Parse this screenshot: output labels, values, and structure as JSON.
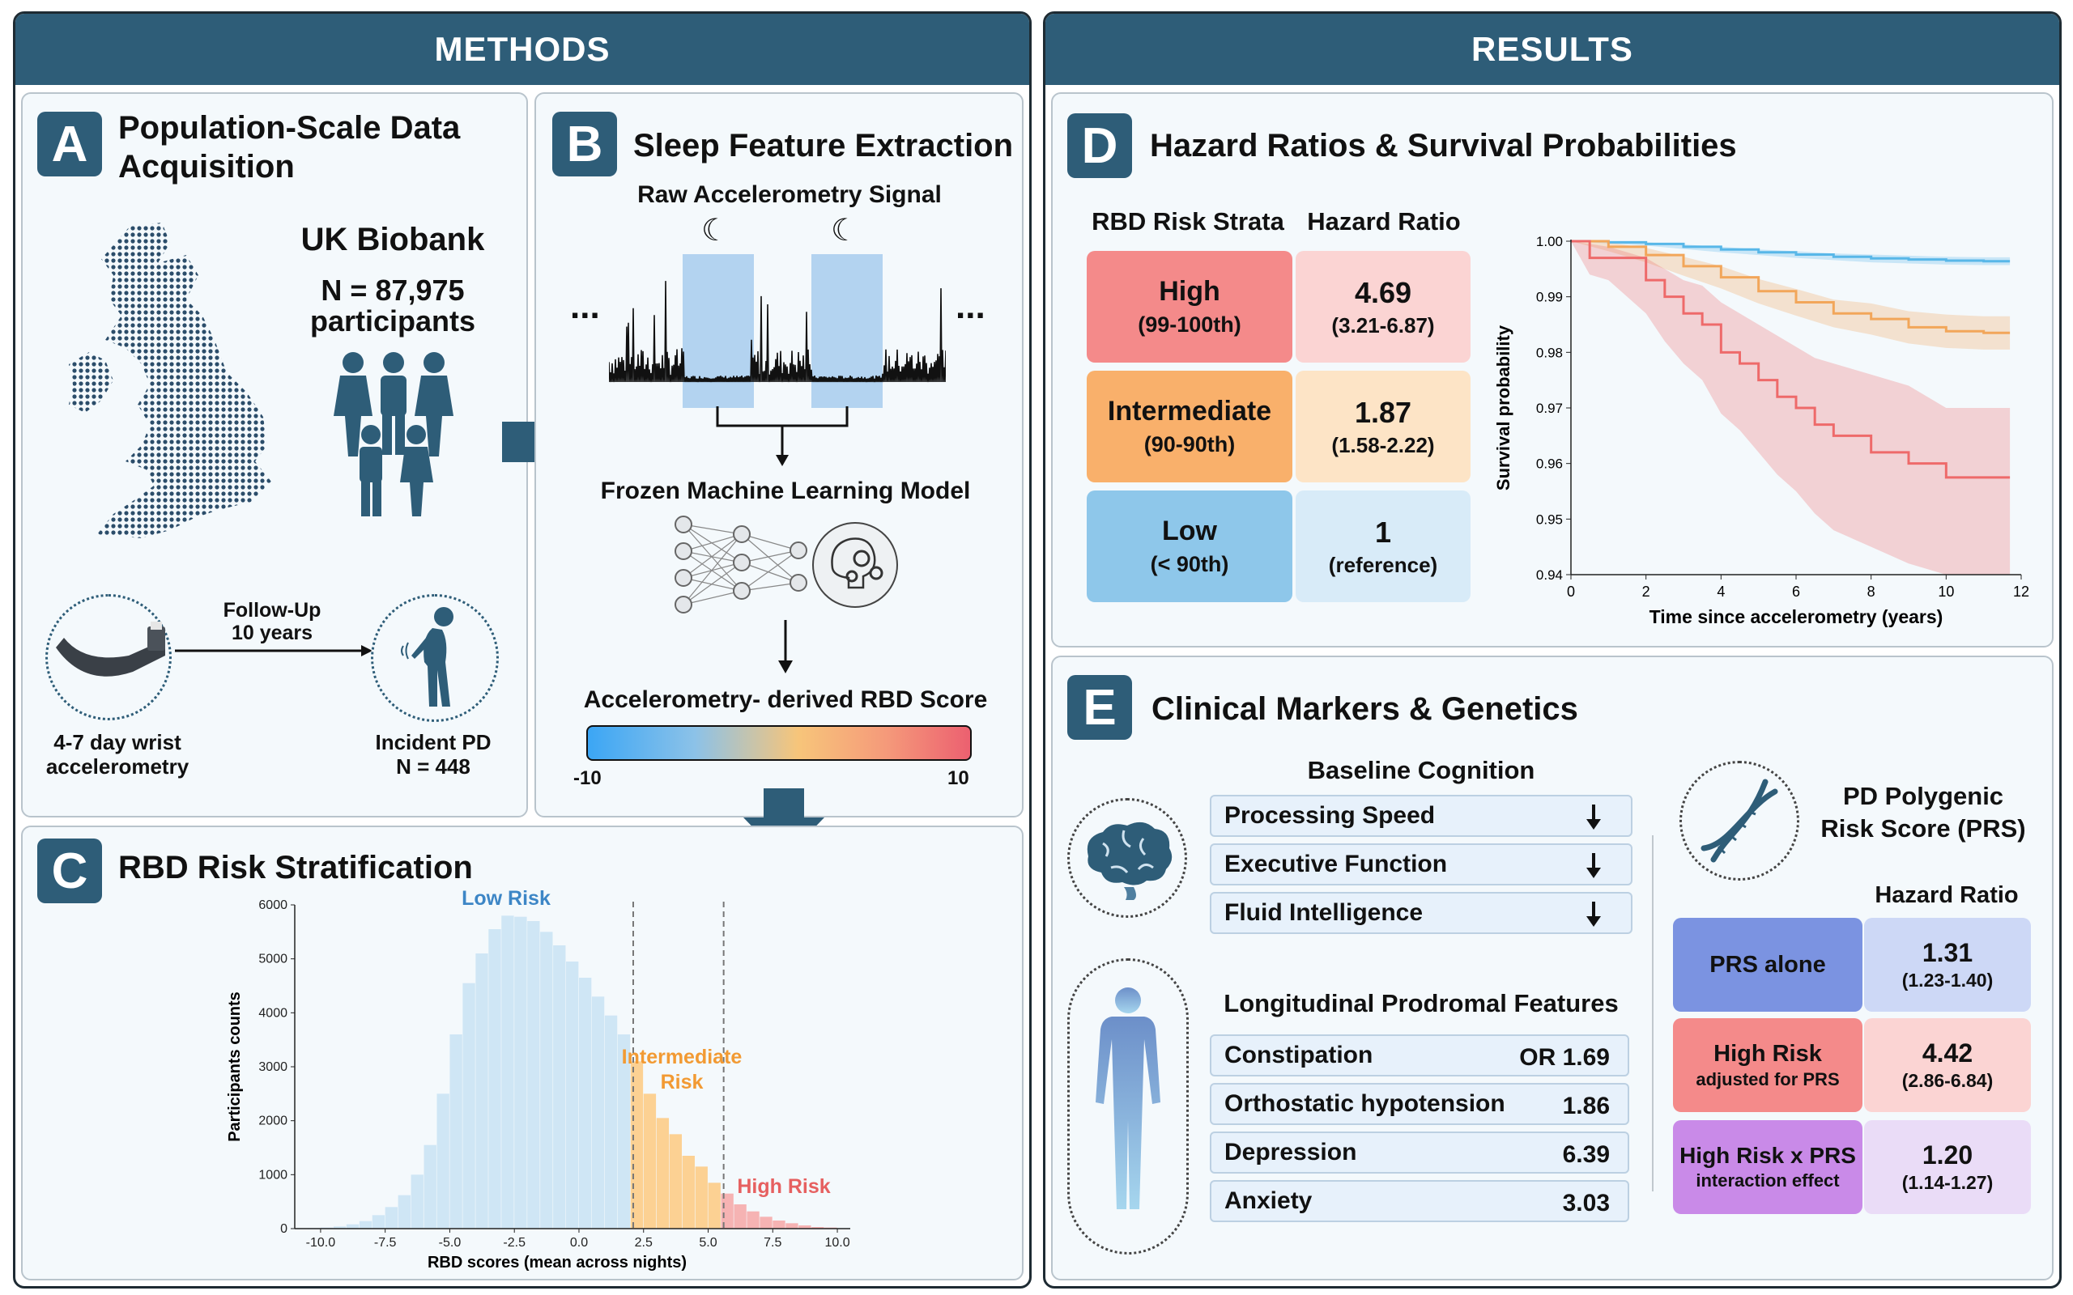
{
  "headers": {
    "methods": "METHODS",
    "results": "RESULTS"
  },
  "panel_a": {
    "letter": "A",
    "title_line1": "Population-Scale Data",
    "title_line2": "Acquisition",
    "biobank": "UK Biobank",
    "n_line": "N = 87,975",
    "n_label": "participants",
    "follow_up_line1": "Follow-Up",
    "follow_up_line2": "10 years",
    "device_line1": "4-7 day wrist",
    "device_line2": "accelerometry",
    "pd_line1": "Incident PD",
    "pd_line2": "N = 448"
  },
  "panel_b": {
    "letter": "B",
    "title": "Sleep Feature Extraction",
    "signal_label": "Raw Accelerometry Signal",
    "ellipsis": "...",
    "model_label": "Frozen Machine Learning Model",
    "score_label": "Accelerometry- derived RBD Score",
    "scale_min": "-10",
    "scale_max": "10"
  },
  "panel_c": {
    "letter": "C",
    "title": "RBD Risk Stratification",
    "label_low": "Low Risk",
    "label_mid_1": "Intermediate",
    "label_mid_2": "Risk",
    "label_high": "High Risk",
    "colors": {
      "low": "#cfe6f5",
      "mid": "#fcd193",
      "high": "#f6b3b3"
    }
  },
  "panel_d": {
    "letter": "D",
    "title": "Hazard Ratios & Survival Probabilities",
    "col_strata": "RBD Risk Strata",
    "col_hr": "Hazard Ratio",
    "rows": [
      {
        "name": "High",
        "range": "(99-100th)",
        "hr": "4.69",
        "ci": "(3.21-6.87)"
      },
      {
        "name": "Intermediate",
        "range": "(90-90th)",
        "hr": "1.87",
        "ci": "(1.58-2.22)"
      },
      {
        "name": "Low",
        "range": "(< 90th)",
        "hr": "1",
        "ci": "(reference)"
      }
    ]
  },
  "panel_e": {
    "letter": "E",
    "title": "Clinical Markers & Genetics",
    "cognition_title": "Baseline Cognition",
    "cognition": [
      "Processing Speed",
      "Executive Function",
      "Fluid Intelligence"
    ],
    "prodromal_title": "Longitudinal Prodromal Features",
    "prodromal": [
      {
        "name": "Constipation",
        "value": "OR 1.69"
      },
      {
        "name": "Orthostatic hypotension",
        "value": "1.86"
      },
      {
        "name": "Depression",
        "value": "6.39"
      },
      {
        "name": "Anxiety",
        "value": "3.03"
      }
    ],
    "prs_title_1": "PD Polygenic",
    "prs_title_2": "Risk Score (PRS)",
    "hr_header": "Hazard Ratio",
    "prs_rows": [
      {
        "label": "PRS alone",
        "sub": "",
        "hr": "1.31",
        "ci": "(1.23-1.40)"
      },
      {
        "label": "High Risk",
        "sub": "adjusted for PRS",
        "hr": "4.42",
        "ci": "(2.86-6.84)"
      },
      {
        "label": "High Risk x PRS",
        "sub": "interaction effect",
        "hr": "1.20",
        "ci": "(1.14-1.27)"
      }
    ]
  },
  "chart_data": [
    {
      "type": "bar",
      "title": "",
      "xlabel": "RBD scores (mean across nights)",
      "ylabel": "Participants counts",
      "xlim": [
        -11,
        10.5
      ],
      "ylim": [
        0,
        6000
      ],
      "xticks": [
        "-10.0",
        "-7.5",
        "-5.0",
        "-2.5",
        "0.0",
        "2.5",
        "5.0",
        "7.5",
        "10.0"
      ],
      "yticks": [
        "0",
        "1000",
        "2000",
        "3000",
        "4000",
        "5000",
        "6000"
      ],
      "thresholds": [
        2.1,
        5.6
      ],
      "bin_width": 0.5,
      "bin_starts": [
        -10.5,
        -10,
        -9.5,
        -9,
        -8.5,
        -8,
        -7.5,
        -7,
        -6.5,
        -6,
        -5.5,
        -5,
        -4.5,
        -4,
        -3.5,
        -3,
        -2.5,
        -2,
        -1.5,
        -1,
        -0.5,
        0,
        0.5,
        1,
        1.5,
        2,
        2.5,
        3,
        3.5,
        4,
        4.5,
        5,
        5.5,
        6,
        6.5,
        7,
        7.5,
        8,
        8.5,
        9,
        9.5
      ],
      "values": [
        10,
        20,
        40,
        80,
        140,
        250,
        400,
        620,
        1000,
        1550,
        2500,
        3600,
        4550,
        5100,
        5550,
        5800,
        5780,
        5700,
        5500,
        5250,
        4950,
        4650,
        4300,
        3950,
        3600,
        3100,
        2500,
        2050,
        1750,
        1350,
        1150,
        850,
        650,
        450,
        320,
        220,
        150,
        100,
        60,
        30,
        20
      ]
    },
    {
      "type": "line",
      "title": "",
      "xlabel": "Time since accelerometry (years)",
      "ylabel": "Survival probability",
      "xlim": [
        0,
        12
      ],
      "ylim": [
        0.94,
        1.0
      ],
      "xticks": [
        "0",
        "2",
        "4",
        "6",
        "8",
        "10",
        "12"
      ],
      "yticks": [
        "0.94",
        "0.95",
        "0.96",
        "0.97",
        "0.98",
        "0.99",
        "1.00"
      ],
      "series": [
        {
          "color": "#58b7e8",
          "x": [
            0,
            1,
            2,
            3,
            4,
            5,
            6,
            7,
            8,
            9,
            10,
            11,
            11.7
          ],
          "y": [
            1.0,
            0.9998,
            0.9995,
            0.999,
            0.9985,
            0.998,
            0.9976,
            0.9972,
            0.9969,
            0.9967,
            0.9965,
            0.9964,
            0.9964
          ],
          "lo": [
            1.0,
            0.9996,
            0.9992,
            0.9986,
            0.998,
            0.9975,
            0.997,
            0.9966,
            0.9962,
            0.996,
            0.9958,
            0.9957,
            0.9957
          ],
          "hi": [
            1.0,
            1.0,
            0.9998,
            0.9994,
            0.999,
            0.9985,
            0.9982,
            0.9978,
            0.9976,
            0.9974,
            0.9972,
            0.9971,
            0.9971
          ]
        },
        {
          "color": "#f2a65a",
          "x": [
            0,
            1,
            2,
            3,
            4,
            5,
            6,
            7,
            8,
            9,
            10,
            11,
            11.7
          ],
          "y": [
            1.0,
            0.999,
            0.9975,
            0.9955,
            0.9935,
            0.991,
            0.989,
            0.987,
            0.986,
            0.9845,
            0.9838,
            0.9835,
            0.9835
          ],
          "lo": [
            1.0,
            0.9982,
            0.9962,
            0.9938,
            0.9915,
            0.9888,
            0.9866,
            0.9845,
            0.9832,
            0.9816,
            0.9808,
            0.9805,
            0.9805
          ],
          "hi": [
            1.0,
            0.9998,
            0.9988,
            0.9972,
            0.9955,
            0.9932,
            0.9914,
            0.9895,
            0.9888,
            0.9874,
            0.9868,
            0.9865,
            0.9865
          ]
        },
        {
          "color": "#ee6a6a",
          "x": [
            0,
            0.5,
            1,
            2,
            2.5,
            3,
            3.5,
            4,
            4.5,
            5,
            5.5,
            6,
            6.5,
            7,
            8,
            9,
            10,
            11.7
          ],
          "y": [
            1.0,
            0.997,
            0.997,
            0.993,
            0.99,
            0.987,
            0.985,
            0.98,
            0.978,
            0.975,
            0.972,
            0.97,
            0.967,
            0.965,
            0.962,
            0.96,
            0.9575,
            0.9575
          ],
          "lo": [
            1.0,
            0.994,
            0.993,
            0.987,
            0.982,
            0.978,
            0.975,
            0.969,
            0.966,
            0.962,
            0.958,
            0.955,
            0.951,
            0.948,
            0.945,
            0.942,
            0.94,
            0.94
          ],
          "hi": [
            1.0,
            0.9995,
            0.999,
            0.997,
            0.995,
            0.993,
            0.992,
            0.989,
            0.987,
            0.985,
            0.983,
            0.981,
            0.979,
            0.978,
            0.976,
            0.974,
            0.97,
            0.97
          ]
        }
      ]
    }
  ]
}
